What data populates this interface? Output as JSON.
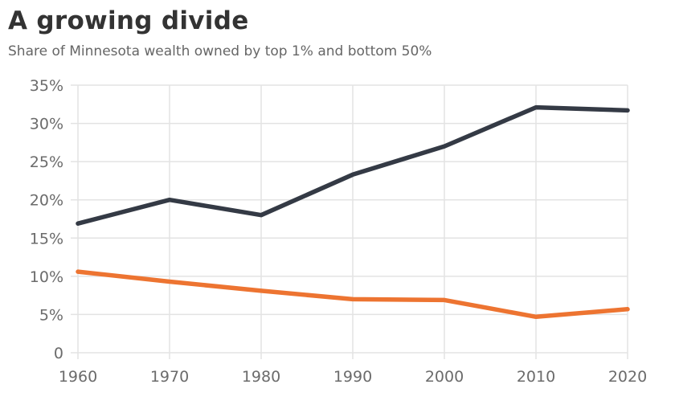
{
  "chart_data": {
    "type": "line",
    "title": "A growing divide",
    "subtitle": "Share of Minnesota wealth owned by top 1% and bottom 50%",
    "xlabel": "",
    "ylabel": "",
    "x": [
      1960,
      1970,
      1980,
      1990,
      2000,
      2010,
      2020
    ],
    "xlim": [
      1960,
      2020
    ],
    "ylim": [
      0,
      35
    ],
    "x_ticks": [
      "1960",
      "1970",
      "1980",
      "1990",
      "2000",
      "2010",
      "2020"
    ],
    "y_ticks": [
      {
        "value": 0,
        "label": "0"
      },
      {
        "value": 5,
        "label": "5%"
      },
      {
        "value": 10,
        "label": "10%"
      },
      {
        "value": 15,
        "label": "15%"
      },
      {
        "value": 20,
        "label": "20%"
      },
      {
        "value": 25,
        "label": "25%"
      },
      {
        "value": 30,
        "label": "30%"
      },
      {
        "value": 35,
        "label": "35%"
      }
    ],
    "grid": true,
    "legend": "none",
    "series": [
      {
        "name": "Top 1%",
        "color": "#343a45",
        "values": [
          16.9,
          20.0,
          18.0,
          23.3,
          27.0,
          32.1,
          31.7
        ]
      },
      {
        "name": "Bottom 50%",
        "color": "#ed7431",
        "values": [
          10.6,
          9.3,
          8.1,
          7.0,
          6.9,
          4.7,
          5.7
        ]
      }
    ]
  }
}
